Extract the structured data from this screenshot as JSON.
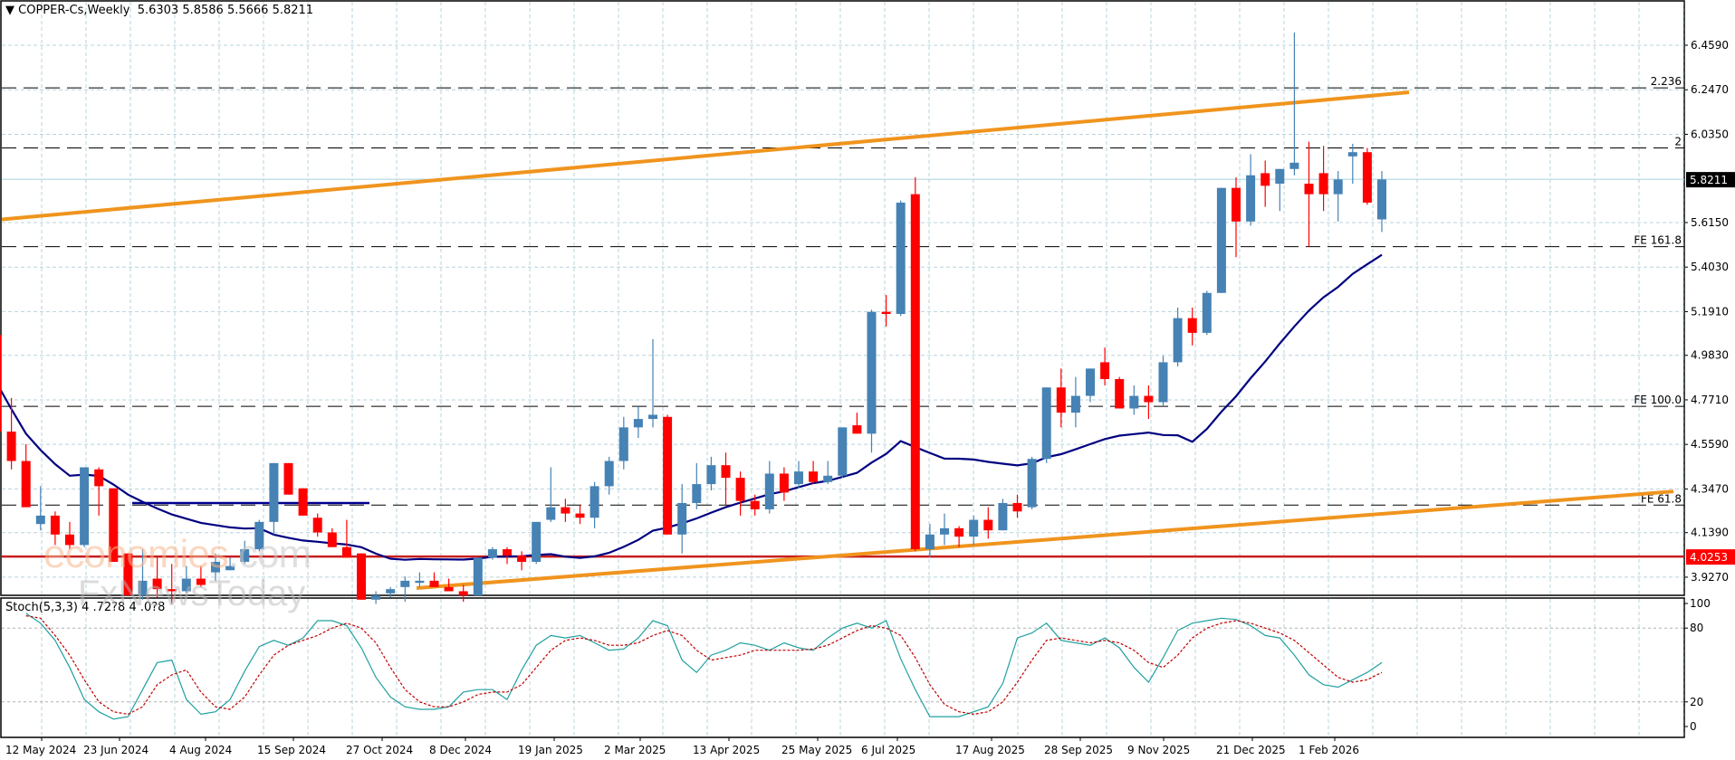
{
  "header": {
    "triangle": "▼",
    "symbol_timeframe": "COPPER-Cs,Weekly",
    "ohlc": "5.6303 5.8586 5.5666 5.8211"
  },
  "stoch_header": {
    "label": "Stoch(5,3,3)",
    "values": "4 .72?8 4 .0?8"
  },
  "watermark": {
    "line1": "economies",
    "line1_suffix": ".com",
    "line2": "FxNewsToday"
  },
  "colors": {
    "bull": "#4682b4",
    "bear": "#ff0000",
    "ma": "#000080",
    "channel": "#f0941e",
    "support": "#c81e1e",
    "grid": "#b7d3dc",
    "stoch_main": "#20a0a0",
    "stoch_signal": "#c00000",
    "price_tag_bg": "#000000",
    "support_tag_bg": "#ff0000"
  },
  "chart_data": [
    {
      "type": "candlestick",
      "title": "COPPER-Cs, Weekly",
      "ylabel": "Price",
      "price_axis_ticks": [
        6.459,
        6.247,
        6.035,
        5.615,
        5.403,
        5.191,
        4.983,
        4.771,
        4.559,
        4.347,
        4.139,
        3.927
      ],
      "current_price": 5.8211,
      "support_level": 4.0253,
      "ylim": [
        3.86,
        6.67
      ],
      "x_ticks": [
        "12 May 2024",
        "23 Jun 2024",
        "4 Aug 2024",
        "15 Sep 2024",
        "27 Oct 2024",
        "8 Dec 2024",
        "19 Jan 2025",
        "2 Mar 2025",
        "13 Apr 2025",
        "25 May 2025",
        "6 Jul 2025",
        "17 Aug 2025",
        "28 Sep 2025",
        "9 Nov 2025",
        "21 Dec 2025",
        "1 Feb 2026"
      ],
      "fib_levels": [
        {
          "label": "2.236",
          "price": 6.256
        },
        {
          "label": "2",
          "price": 5.97
        },
        {
          "label": "FE 161.8",
          "price": 5.5
        },
        {
          "label": "FE 100.0",
          "price": 4.74
        },
        {
          "label": "FE 61.8",
          "price": 4.27
        }
      ],
      "last_bar_ohlc": {
        "open": 5.6303,
        "high": 5.8586,
        "low": 5.5666,
        "close": 5.8211
      },
      "ohlc": [
        [
          5.05,
          5.15,
          4.82,
          5.08
        ],
        [
          5.08,
          5.15,
          4.62,
          4.62
        ],
        [
          4.62,
          4.78,
          4.44,
          4.48
        ],
        [
          4.48,
          4.56,
          4.26,
          4.26
        ],
        [
          4.18,
          4.36,
          4.15,
          4.22
        ],
        [
          4.22,
          4.24,
          4.08,
          4.13
        ],
        [
          4.13,
          4.19,
          4.06,
          4.08
        ],
        [
          4.08,
          4.45,
          4.07,
          4.45
        ],
        [
          4.44,
          4.45,
          4.22,
          4.36
        ],
        [
          4.35,
          4.33,
          4.04,
          4.0
        ],
        [
          4.04,
          4.01,
          3.89,
          3.84
        ],
        [
          3.84,
          4.06,
          3.82,
          3.91
        ],
        [
          3.92,
          4.02,
          3.83,
          3.87
        ],
        [
          3.87,
          3.99,
          3.8,
          3.86
        ],
        [
          3.86,
          3.98,
          3.85,
          3.92
        ],
        [
          3.92,
          3.98,
          3.88,
          3.89
        ],
        [
          3.95,
          4.04,
          3.91,
          4.0
        ],
        [
          3.96,
          4.02,
          3.97,
          3.98
        ],
        [
          4.0,
          4.1,
          3.99,
          4.06
        ],
        [
          4.06,
          4.2,
          4.05,
          4.19
        ],
        [
          4.19,
          4.43,
          4.13,
          4.47
        ],
        [
          4.47,
          4.47,
          4.33,
          4.32
        ],
        [
          4.35,
          4.33,
          4.26,
          4.22
        ],
        [
          4.21,
          4.23,
          4.12,
          4.14
        ],
        [
          4.14,
          4.16,
          4.1,
          4.07
        ],
        [
          4.07,
          4.2,
          4.1,
          4.02
        ],
        [
          4.04,
          4.0,
          3.86,
          3.82
        ],
        [
          3.82,
          3.86,
          3.8,
          3.84
        ],
        [
          3.85,
          3.88,
          3.83,
          3.87
        ],
        [
          3.88,
          3.93,
          3.81,
          3.91
        ],
        [
          3.9,
          3.95,
          3.88,
          3.91
        ],
        [
          3.91,
          3.95,
          3.89,
          3.88
        ],
        [
          3.88,
          3.92,
          3.86,
          3.86
        ],
        [
          3.86,
          3.89,
          3.81,
          3.84
        ],
        [
          3.84,
          4.0,
          3.84,
          4.02
        ],
        [
          4.02,
          4.07,
          4.01,
          4.06
        ],
        [
          4.06,
          4.07,
          3.99,
          4.03
        ],
        [
          4.03,
          4.05,
          3.96,
          4.0
        ],
        [
          4.0,
          4.19,
          3.99,
          4.19
        ],
        [
          4.2,
          4.45,
          4.19,
          4.26
        ],
        [
          4.26,
          4.3,
          4.19,
          4.23
        ],
        [
          4.23,
          4.27,
          4.18,
          4.21
        ],
        [
          4.21,
          4.38,
          4.16,
          4.36
        ],
        [
          4.36,
          4.5,
          4.32,
          4.48
        ],
        [
          4.48,
          4.69,
          4.44,
          4.64
        ],
        [
          4.64,
          4.74,
          4.59,
          4.68
        ],
        [
          4.68,
          5.06,
          4.64,
          4.7
        ],
        [
          4.69,
          4.7,
          4.13,
          4.13
        ],
        [
          4.13,
          4.37,
          4.04,
          4.28
        ],
        [
          4.28,
          4.47,
          4.25,
          4.37
        ],
        [
          4.37,
          4.5,
          4.34,
          4.46
        ],
        [
          4.46,
          4.52,
          4.27,
          4.4
        ],
        [
          4.4,
          4.43,
          4.22,
          4.29
        ],
        [
          4.29,
          4.32,
          4.22,
          4.25
        ],
        [
          4.25,
          4.48,
          4.23,
          4.42
        ],
        [
          4.42,
          4.45,
          4.29,
          4.33
        ],
        [
          4.37,
          4.48,
          4.35,
          4.43
        ],
        [
          4.43,
          4.48,
          4.37,
          4.38
        ],
        [
          4.38,
          4.48,
          4.37,
          4.41
        ],
        [
          4.41,
          4.64,
          4.4,
          4.64
        ],
        [
          4.65,
          4.71,
          4.61,
          4.61
        ],
        [
          4.61,
          5.2,
          4.52,
          5.19
        ],
        [
          5.19,
          5.27,
          5.12,
          5.18
        ],
        [
          5.18,
          5.72,
          5.17,
          5.71
        ],
        [
          5.75,
          5.83,
          4.05,
          4.06
        ],
        [
          4.06,
          4.18,
          4.02,
          4.13
        ],
        [
          4.13,
          4.23,
          4.08,
          4.16
        ],
        [
          4.16,
          4.17,
          4.07,
          4.12
        ],
        [
          4.12,
          4.22,
          4.08,
          4.2
        ],
        [
          4.2,
          4.26,
          4.11,
          4.15
        ],
        [
          4.15,
          4.3,
          4.15,
          4.28
        ],
        [
          4.28,
          4.32,
          4.21,
          4.24
        ],
        [
          4.26,
          4.5,
          4.25,
          4.49
        ],
        [
          4.49,
          4.82,
          4.47,
          4.83
        ],
        [
          4.83,
          4.92,
          4.64,
          4.71
        ],
        [
          4.71,
          4.88,
          4.64,
          4.79
        ],
        [
          4.79,
          4.92,
          4.76,
          4.92
        ],
        [
          4.95,
          5.02,
          4.84,
          4.87
        ],
        [
          4.87,
          4.88,
          4.75,
          4.73
        ],
        [
          4.73,
          4.84,
          4.7,
          4.79
        ],
        [
          4.79,
          4.84,
          4.68,
          4.76
        ],
        [
          4.76,
          4.98,
          4.74,
          4.95
        ],
        [
          4.95,
          5.21,
          4.93,
          5.16
        ],
        [
          5.16,
          5.21,
          5.03,
          5.09
        ],
        [
          5.09,
          5.29,
          5.08,
          5.28
        ],
        [
          5.28,
          5.68,
          5.28,
          5.78
        ],
        [
          5.78,
          5.83,
          5.45,
          5.62
        ],
        [
          5.62,
          5.94,
          5.6,
          5.84
        ],
        [
          5.85,
          5.91,
          5.69,
          5.79
        ],
        [
          5.8,
          5.81,
          5.67,
          5.87
        ],
        [
          5.87,
          6.52,
          5.84,
          5.9
        ],
        [
          5.8,
          6.0,
          5.5,
          5.75
        ],
        [
          5.85,
          5.98,
          5.67,
          5.75
        ],
        [
          5.75,
          5.86,
          5.62,
          5.82
        ],
        [
          5.93,
          5.99,
          5.8,
          5.95
        ],
        [
          5.95,
          5.97,
          5.7,
          5.71
        ],
        [
          5.63,
          5.86,
          5.57,
          5.82
        ]
      ]
    },
    {
      "type": "line",
      "title": "Stoch(5,3,3)",
      "ylim": [
        0,
        100
      ],
      "y_ticks": [
        100,
        80,
        20,
        0
      ],
      "series": [
        {
          "name": "%K",
          "values": [
            92,
            84,
            70,
            48,
            22,
            12,
            6,
            8,
            30,
            52,
            54,
            22,
            10,
            12,
            22,
            45,
            65,
            70,
            66,
            72,
            86,
            86,
            82,
            64,
            40,
            24,
            16,
            14,
            14,
            16,
            28,
            30,
            30,
            22,
            46,
            66,
            74,
            72,
            74,
            68,
            62,
            63,
            72,
            86,
            82,
            54,
            44,
            58,
            62,
            68,
            66,
            62,
            68,
            64,
            62,
            72,
            80,
            84,
            80,
            86,
            55,
            30,
            8,
            8,
            8,
            12,
            16,
            35,
            72,
            76,
            84,
            70,
            68,
            66,
            72,
            64,
            48,
            36,
            56,
            78,
            84,
            86,
            88,
            87,
            82,
            74,
            72,
            58,
            42,
            34,
            32,
            38,
            44,
            52
          ]
        },
        {
          "name": "%D",
          "values": [
            90,
            88,
            74,
            58,
            38,
            20,
            12,
            10,
            16,
            34,
            42,
            46,
            28,
            16,
            14,
            24,
            42,
            58,
            66,
            70,
            74,
            80,
            84,
            80,
            68,
            48,
            30,
            20,
            16,
            16,
            20,
            26,
            28,
            28,
            34,
            48,
            62,
            70,
            72,
            70,
            66,
            66,
            68,
            74,
            78,
            74,
            62,
            54,
            56,
            58,
            62,
            62,
            62,
            62,
            63,
            66,
            72,
            78,
            82,
            80,
            74,
            56,
            34,
            18,
            12,
            10,
            12,
            20,
            36,
            54,
            70,
            72,
            70,
            68,
            70,
            68,
            62,
            52,
            48,
            58,
            72,
            80,
            84,
            86,
            84,
            80,
            76,
            70,
            60,
            50,
            40,
            36,
            38,
            44
          ]
        }
      ]
    }
  ]
}
